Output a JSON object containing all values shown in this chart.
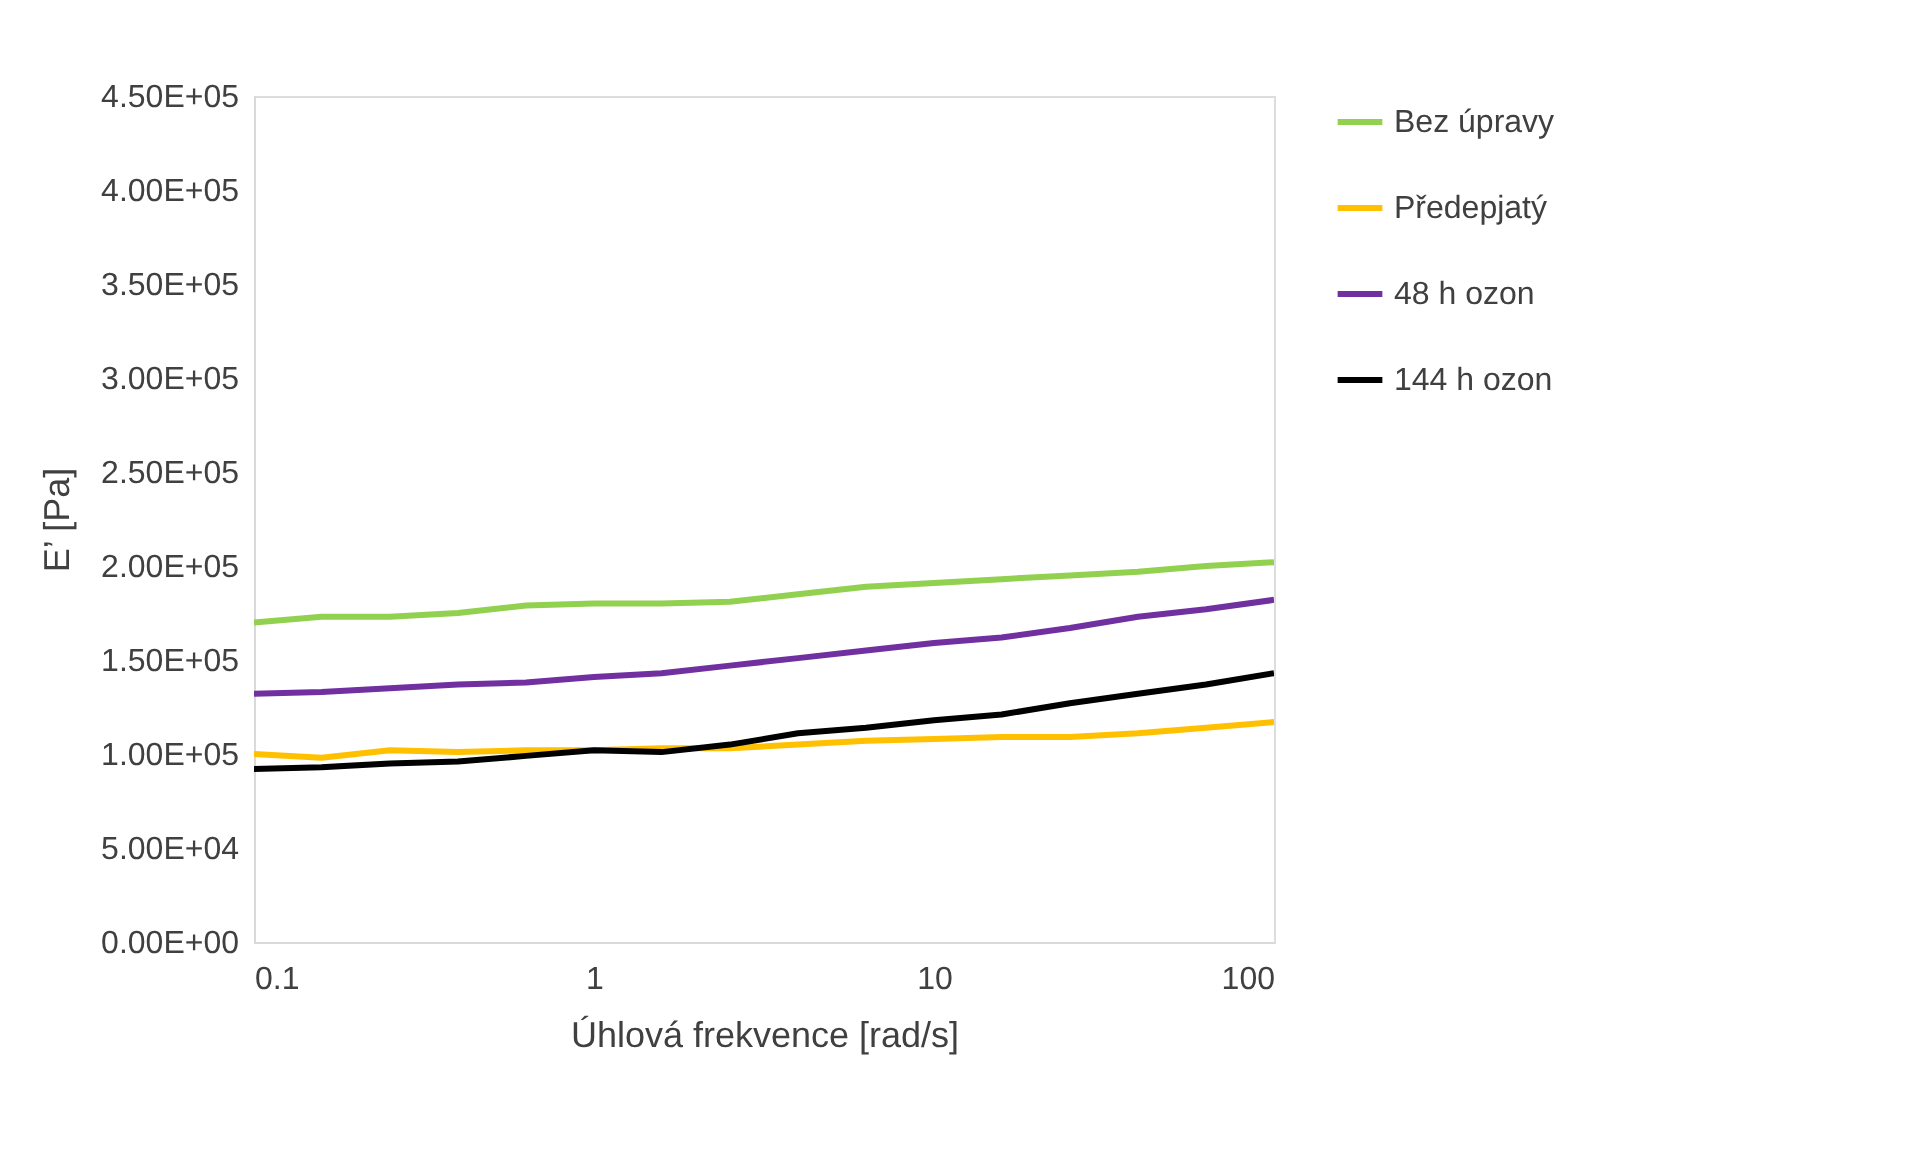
{
  "chart_data": {
    "type": "line",
    "xlabel": "Úhlová frekvence [rad/s]",
    "ylabel": "E’ [Pa]",
    "log": "x",
    "grid": false,
    "legend": "right",
    "marker": "none",
    "line_style": "solid",
    "x": [
      0.1,
      0.158,
      0.251,
      0.398,
      0.631,
      1,
      1.58,
      2.51,
      3.98,
      6.31,
      10,
      15.8,
      25.1,
      39.8,
      63.1,
      100
    ],
    "xlim": [
      0.1,
      100
    ],
    "xticks": [
      0.1,
      1,
      10,
      100
    ],
    "ylim": [
      0,
      450000
    ],
    "yticks": [
      {
        "value": 0,
        "label": "0.00E+00"
      },
      {
        "value": 50000,
        "label": "5.00E+04"
      },
      {
        "value": 100000,
        "label": "1.00E+05"
      },
      {
        "value": 150000,
        "label": "1.50E+05"
      },
      {
        "value": 200000,
        "label": "2.00E+05"
      },
      {
        "value": 250000,
        "label": "2.50E+05"
      },
      {
        "value": 300000,
        "label": "3.00E+05"
      },
      {
        "value": 350000,
        "label": "3.50E+05"
      },
      {
        "value": 400000,
        "label": "4.00E+05"
      },
      {
        "value": 450000,
        "label": "4.50E+05"
      }
    ],
    "series": [
      {
        "name": "Bez úpravy",
        "color": "#92d050",
        "values": [
          170000,
          173000,
          173000,
          175000,
          179000,
          180000,
          180000,
          181000,
          185000,
          189000,
          191000,
          193000,
          195000,
          197000,
          200000,
          202000
        ]
      },
      {
        "name": "Předepjatý",
        "color": "#ffc000",
        "values": [
          100000,
          98000,
          102000,
          101000,
          102000,
          102000,
          103000,
          103000,
          105000,
          107000,
          108000,
          109000,
          109000,
          111000,
          114000,
          117000
        ]
      },
      {
        "name": "48 h ozon",
        "color": "#7030a0",
        "values": [
          132000,
          133000,
          135000,
          137000,
          138000,
          141000,
          143000,
          147000,
          151000,
          155000,
          159000,
          162000,
          167000,
          173000,
          177000,
          182000
        ]
      },
      {
        "name": "144 h ozon",
        "color": "#000000",
        "values": [
          92000,
          93000,
          95000,
          96000,
          99000,
          102000,
          101000,
          105000,
          111000,
          114000,
          118000,
          121000,
          127000,
          132000,
          137000,
          143000
        ]
      }
    ]
  }
}
